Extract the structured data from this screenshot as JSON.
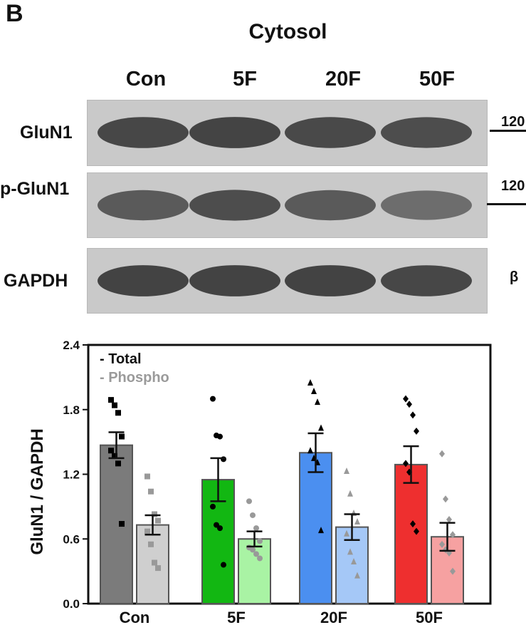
{
  "panel_label": "B",
  "blot": {
    "title": "Cytosol",
    "lanes": [
      "Con",
      "5F",
      "20F",
      "50F"
    ],
    "rows": [
      {
        "label": "GluN1",
        "marker": "120",
        "intensity": [
          0.95,
          0.97,
          0.93,
          0.9
        ]
      },
      {
        "label": "p-GluN1",
        "marker": "120",
        "intensity": [
          0.8,
          0.9,
          0.8,
          0.65
        ]
      },
      {
        "label": "GAPDH",
        "marker": "β",
        "intensity": [
          0.98,
          0.98,
          0.98,
          0.95
        ]
      }
    ]
  },
  "chart_data": {
    "type": "bar",
    "ylabel": "GluN1 / GAPDH",
    "xlabel": "",
    "ylim": [
      0.0,
      2.4
    ],
    "yticks": [
      "0.0",
      "0.6",
      "1.2",
      "1.8",
      "2.4"
    ],
    "categories": [
      "Con",
      "5F",
      "20F",
      "50F"
    ],
    "legend": {
      "position": "top-left",
      "entries": [
        "- Total",
        "- Phospho"
      ]
    },
    "series": [
      {
        "name": "- Total",
        "values": [
          1.47,
          1.15,
          1.4,
          1.29
        ],
        "sem": [
          0.12,
          0.2,
          0.18,
          0.17
        ],
        "colors": [
          "#7b7b7b",
          "#12b712",
          "#4b8ff0",
          "#ee2f2f"
        ],
        "markers": [
          "square",
          "circle",
          "triangle",
          "diamond"
        ],
        "points": [
          [
            1.89,
            1.84,
            1.77,
            1.55,
            1.42,
            1.37,
            1.3,
            0.74
          ],
          [
            1.9,
            1.56,
            1.55,
            1.34,
            0.9,
            0.73,
            0.7,
            0.36
          ],
          [
            2.05,
            1.97,
            1.87,
            1.63,
            1.42,
            1.35,
            1.31,
            0.68
          ],
          [
            1.9,
            1.85,
            1.75,
            1.6,
            1.3,
            1.22,
            0.74,
            0.67
          ]
        ]
      },
      {
        "name": "- Phospho",
        "values": [
          0.73,
          0.6,
          0.71,
          0.62
        ],
        "sem": [
          0.09,
          0.07,
          0.12,
          0.13
        ],
        "colors": [
          "#cfcfcf",
          "#a9f3a4",
          "#a5c8f7",
          "#f6a1a1"
        ],
        "markers": [
          "square",
          "circle",
          "triangle",
          "diamond"
        ],
        "points": [
          [
            1.18,
            1.04,
            0.83,
            0.77,
            0.67,
            0.55,
            0.38,
            0.33
          ],
          [
            0.95,
            0.82,
            0.7,
            0.58,
            0.52,
            0.5,
            0.46,
            0.42
          ],
          [
            1.23,
            1.02,
            0.84,
            0.76,
            0.65,
            0.48,
            0.39,
            0.26
          ],
          [
            1.39,
            0.97,
            0.78,
            0.64,
            0.55,
            0.5,
            0.47,
            0.3
          ]
        ]
      }
    ]
  }
}
